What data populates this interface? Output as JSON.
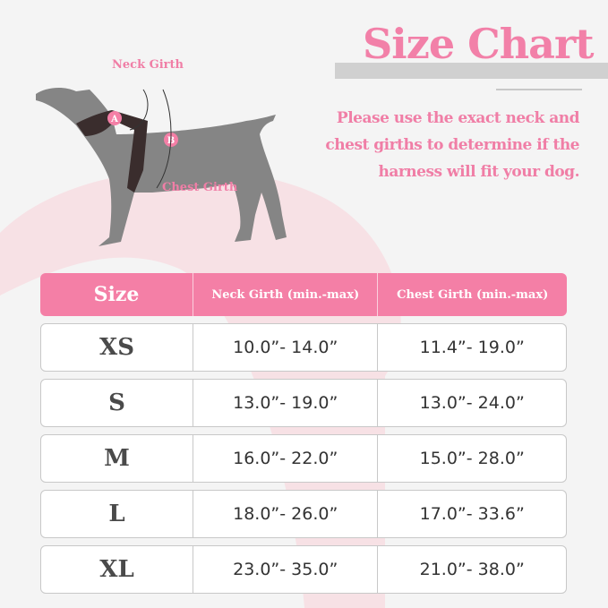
{
  "title": "Size Chart",
  "description": "Please use the exact neck and chest girths to determine if the harness will fit your dog.",
  "diagram": {
    "neck_label": "Neck Girth",
    "chest_label": "Chest Girth",
    "marker_a": "A",
    "marker_b": "B"
  },
  "colors": {
    "accent": "#f47fa6",
    "background": "#f4f4f4",
    "dog": "#858585"
  },
  "table": {
    "headers": [
      "Size",
      "Neck Girth (min.-max)",
      "Chest Girth (min.-max)"
    ],
    "rows": [
      [
        "XS",
        "10.0”- 14.0”",
        "11.4”- 19.0”"
      ],
      [
        "S",
        "13.0”- 19.0”",
        "13.0”- 24.0”"
      ],
      [
        "M",
        "16.0”- 22.0”",
        "15.0”- 28.0”"
      ],
      [
        "L",
        "18.0”- 26.0”",
        "17.0”- 33.6”"
      ],
      [
        "XL",
        "23.0”- 35.0”",
        "21.0”- 38.0”"
      ]
    ]
  }
}
